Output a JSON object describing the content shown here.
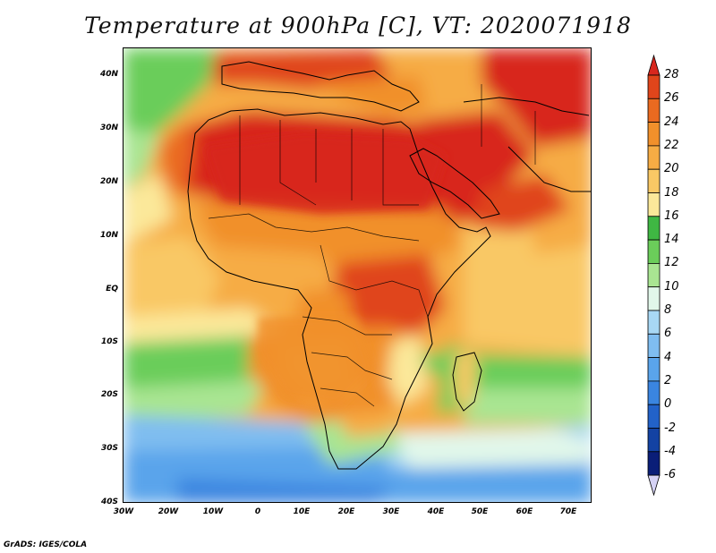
{
  "title": "Temperature at 900hPa [C], VT: 2020071918",
  "credit": "GrADS: IGES/COLA",
  "map": {
    "region": "Africa and surrounding seas",
    "lon_range": [
      -30,
      76
    ],
    "lat_range": [
      -40,
      45
    ],
    "lat_labels": [
      "40N",
      "30N",
      "20N",
      "10N",
      "EQ",
      "10S",
      "20S",
      "30S",
      "40S"
    ],
    "lon_labels": [
      "30W",
      "20W",
      "10W",
      "0",
      "10E",
      "20E",
      "30E",
      "40E",
      "50E",
      "60E",
      "70E"
    ]
  },
  "colorbar": {
    "levels": [
      "28",
      "26",
      "24",
      "22",
      "20",
      "18",
      "16",
      "14",
      "12",
      "10",
      "8",
      "6",
      "4",
      "2",
      "0",
      "-2",
      "-4",
      "-6"
    ],
    "colors": [
      "#d8271e",
      "#e0451b",
      "#ea6a20",
      "#f1902b",
      "#f6ac44",
      "#f9c865",
      "#fbe89a",
      "#3fb743",
      "#6bcd5a",
      "#a9e592",
      "#e1f7ea",
      "#a8d8f4",
      "#7fbdf0",
      "#5aa4eb",
      "#3a85e0",
      "#2262c9",
      "#1342a3",
      "#0a1e78",
      "#d5d2f5"
    ]
  }
}
